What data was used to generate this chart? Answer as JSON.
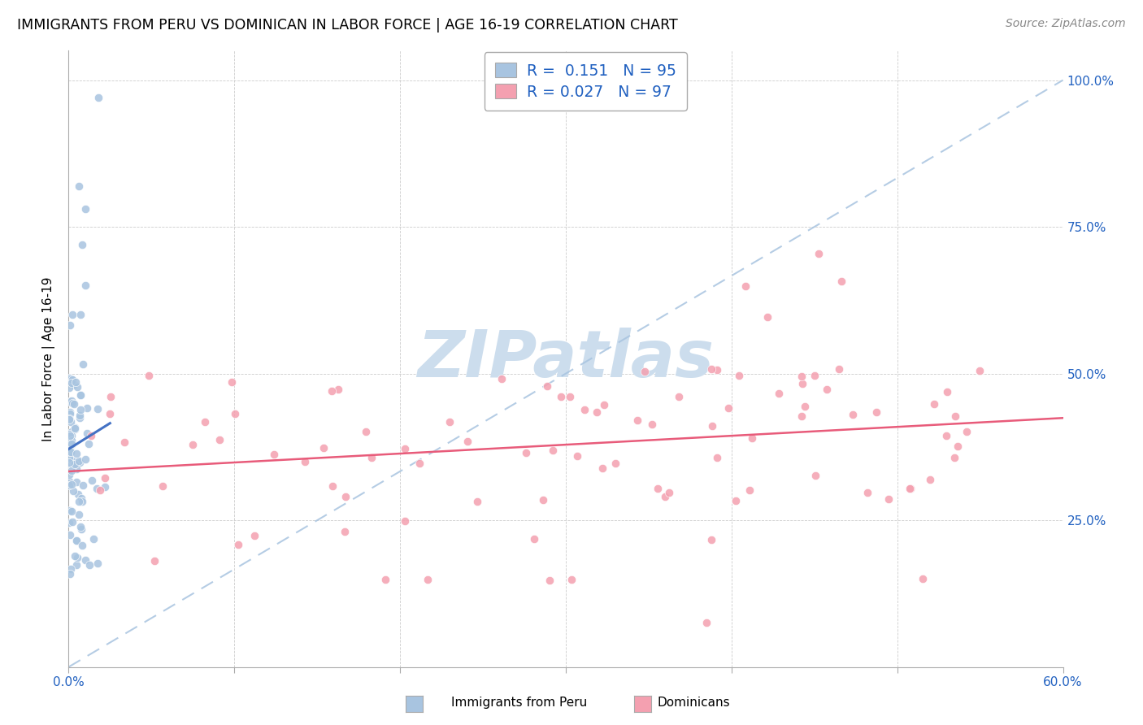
{
  "title": "IMMIGRANTS FROM PERU VS DOMINICAN IN LABOR FORCE | AGE 16-19 CORRELATION CHART",
  "source": "Source: ZipAtlas.com",
  "ylabel": "In Labor Force | Age 16-19",
  "xlim": [
    0.0,
    0.6
  ],
  "ylim": [
    0.0,
    1.05
  ],
  "peru_R": 0.151,
  "peru_N": 95,
  "dom_R": 0.027,
  "dom_N": 97,
  "peru_color": "#a8c4e0",
  "dom_color": "#f4a0b0",
  "peru_line_color": "#4472c4",
  "dom_line_color": "#e85b7a",
  "dashed_line_color": "#a8c4e0",
  "watermark_color": "#ccdded",
  "legend_color": "#2060c0",
  "background_color": "#ffffff"
}
